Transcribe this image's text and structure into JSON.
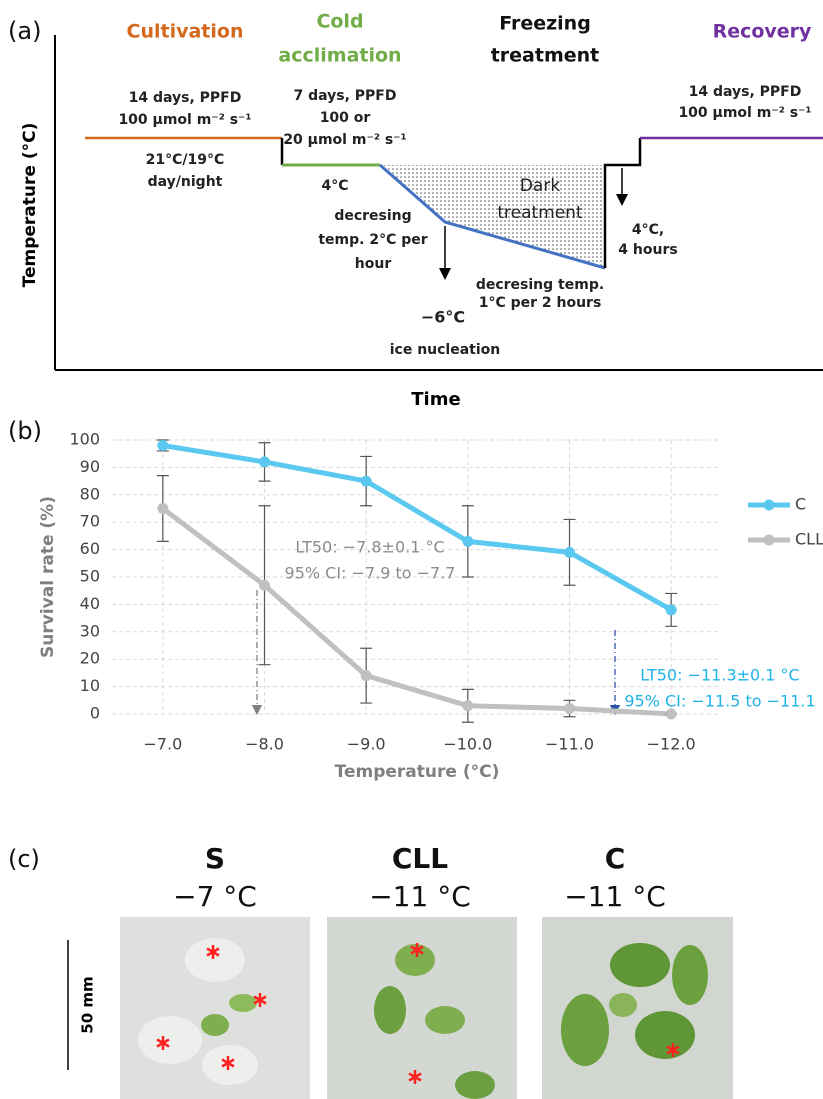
{
  "diagram": {
    "panel_label": "(a)",
    "y_label": "Temperature (°C)",
    "x_label": "Time",
    "stages": [
      {
        "title": [
          "Cultivation"
        ],
        "color": "#d4691e"
      },
      {
        "title": [
          "Cold",
          "acclimation"
        ],
        "color": "#70ad47"
      },
      {
        "title": [
          "Freezing",
          "treatment"
        ],
        "color": "#111111"
      },
      {
        "title": [
          "Recovery"
        ],
        "color": "#7030a0"
      }
    ],
    "notes": {
      "cultivation_conditions": [
        "14 days, PPFD",
        "100 µmol m⁻² s⁻¹"
      ],
      "cultivation_temp": [
        "21°C/19°C",
        "day/night"
      ],
      "acclimation_conditions": [
        "7 days, PPFD",
        "100 or",
        "20 µmol m⁻² s⁻¹"
      ],
      "acclimation_temp": "4°C",
      "cooling_1": [
        "decresing",
        "temp. 2°C per",
        "hour"
      ],
      "dark": [
        "Dark",
        "treatment"
      ],
      "cooling_2": [
        "decresing temp.",
        "1°C per  2 hours"
      ],
      "nucleation_temp": "−6°C",
      "nucleation": "ice nucleation",
      "thaw": [
        "4°C,",
        "4 hours"
      ],
      "recovery_conditions": [
        "14 days, PPFD",
        "100 µmol m⁻² s⁻¹"
      ]
    }
  },
  "chart_data": {
    "type": "line",
    "panel_label": "(b)",
    "x_label": "Temperature (°C)",
    "y_label": "Survival rate (%)",
    "x": [
      -7,
      -8,
      -9,
      -10,
      -11,
      -12
    ],
    "xlim": [
      -6.5,
      -12.5
    ],
    "xticks": [
      {
        "value": -7,
        "label": "−7.0"
      },
      {
        "value": -8,
        "label": "−8.0"
      },
      {
        "value": -9,
        "label": "−9.0"
      },
      {
        "value": -10,
        "label": "−10.0"
      },
      {
        "value": -11,
        "label": "−11.0"
      },
      {
        "value": -12,
        "label": "−12.0"
      }
    ],
    "ylim": [
      0,
      100
    ],
    "yticks": [
      0,
      10,
      20,
      30,
      40,
      50,
      60,
      70,
      80,
      90,
      100
    ],
    "grid": true,
    "legend": "right",
    "series": [
      {
        "name": "C",
        "color": "#5bc8f0",
        "values": [
          98,
          92,
          85,
          63,
          59,
          38
        ],
        "errors": [
          2,
          7,
          9,
          13,
          12,
          6
        ]
      },
      {
        "name": "CLL",
        "color": "#c0c0c0",
        "values": [
          75,
          47,
          14,
          3,
          2,
          0
        ],
        "errors": [
          12,
          29,
          10,
          6,
          3,
          0
        ]
      }
    ],
    "annotations": [
      {
        "lines": [
          "LT50: −7.8±0.1 °C",
          "95% CI: −7.9 to −7.7"
        ],
        "color": "#8c8c8c"
      },
      {
        "lines": [
          "LT50: −11.3±0.1 °C",
          "95% CI: −11.5 to −11.1"
        ],
        "color": "#1fb3ea"
      }
    ]
  },
  "photos": {
    "panel_label": "(c)",
    "scale_bar": "50 mm",
    "panels": [
      {
        "title": "S",
        "temperature": "−7 °C"
      },
      {
        "title": "CLL",
        "temperature": "−11 °C"
      },
      {
        "title": "C",
        "temperature": "−11 °C"
      }
    ]
  }
}
